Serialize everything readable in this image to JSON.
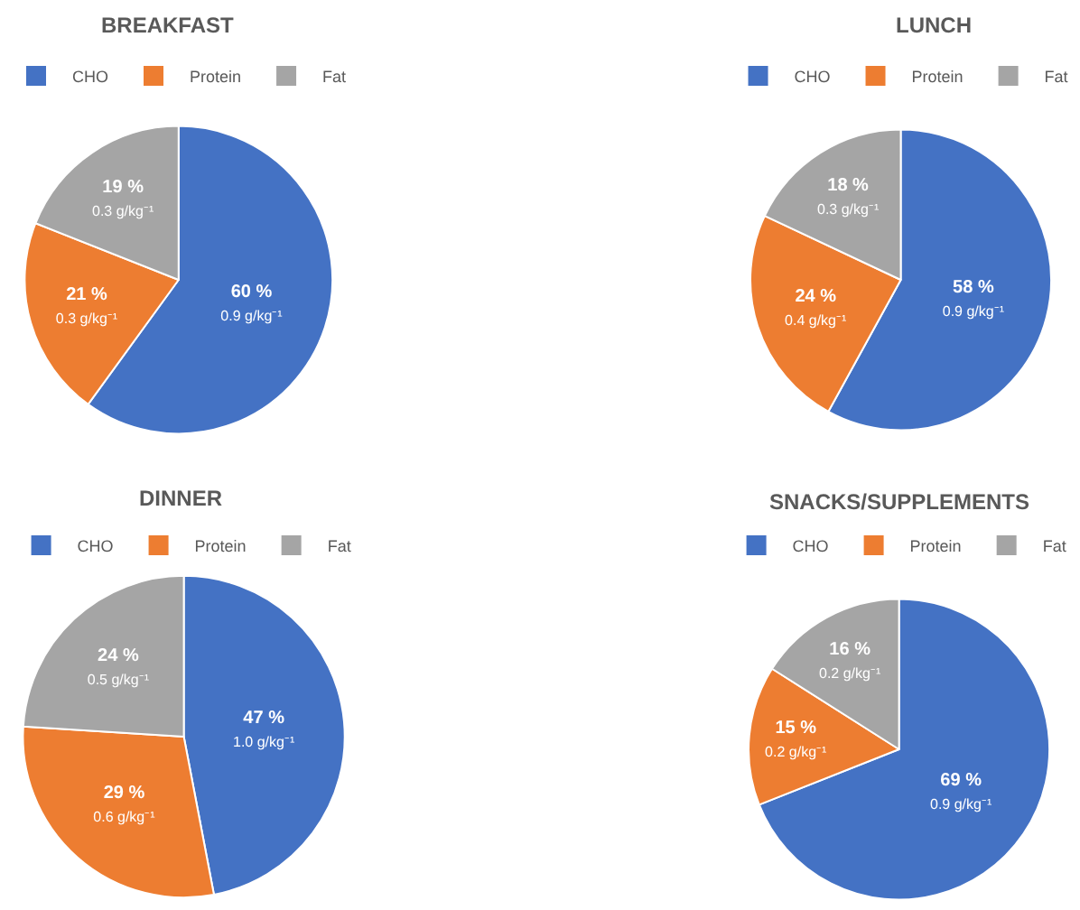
{
  "chart_data": [
    {
      "type": "pie",
      "title": "BREAKFAST",
      "categories": [
        "CHO",
        "Protein",
        "Fat"
      ],
      "values": [
        60,
        21,
        19
      ],
      "colors": [
        "#4472c4",
        "#ed7d31",
        "#a5a5a5"
      ],
      "value_labels": [
        "60 %\n0.9 g/kg⁻¹",
        "21 %\n0.3 g/kg⁻¹",
        "19 %\n0.3 g/kg⁻¹"
      ],
      "legend": "top"
    },
    {
      "type": "pie",
      "title": "LUNCH",
      "categories": [
        "CHO",
        "Protein",
        "Fat"
      ],
      "values": [
        58,
        24,
        18
      ],
      "colors": [
        "#4472c4",
        "#ed7d31",
        "#a5a5a5"
      ],
      "value_labels": [
        "58 %\n0.9 g/kg⁻¹",
        "24 %\n0.4 g/kg⁻¹",
        "18 %\n0.3 g/kg⁻¹"
      ],
      "legend": "top"
    },
    {
      "type": "pie",
      "title": "DINNER",
      "categories": [
        "CHO",
        "Protein",
        "Fat"
      ],
      "values": [
        47,
        29,
        24
      ],
      "colors": [
        "#4472c4",
        "#ed7d31",
        "#a5a5a5"
      ],
      "value_labels": [
        "47 %\n1.0 g/kg⁻¹",
        "29 %\n0.6 g/kg⁻¹",
        "24 %\n0.5 g/kg⁻¹"
      ],
      "legend": "top"
    },
    {
      "type": "pie",
      "title": "SNACKS/SUPPLEMENTS",
      "categories": [
        "CHO",
        "Protein",
        "Fat"
      ],
      "values": [
        69,
        15,
        16
      ],
      "colors": [
        "#4472c4",
        "#ed7d31",
        "#a5a5a5"
      ],
      "value_labels": [
        "69 %\n0.9 g/kg⁻¹",
        "15 %\n0.2 g/kg⁻¹",
        "16 %\n0.2 g/kg⁻¹"
      ],
      "legend": "top"
    }
  ]
}
